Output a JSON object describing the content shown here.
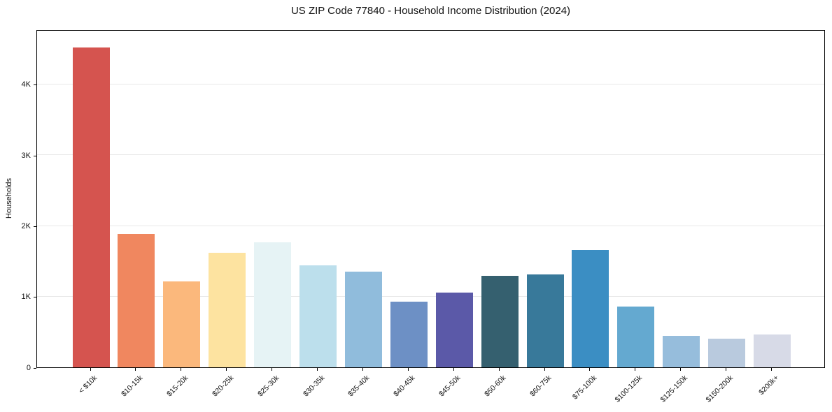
{
  "chart_data": {
    "type": "bar",
    "title": "US ZIP Code 77840 - Household Income Distribution (2024)",
    "xlabel": "",
    "ylabel": "Households",
    "categories": [
      "< $10k",
      "$10-15k",
      "$15-20k",
      "$20-25k",
      "$25-30k",
      "$30-35k",
      "$35-40k",
      "$40-45k",
      "$45-50k",
      "$50-60k",
      "$60-75k",
      "$75-100k",
      "$100-125k",
      "$125-150k",
      "$150-200k",
      "$200k+"
    ],
    "values": [
      4520,
      1890,
      1210,
      1615,
      1770,
      1440,
      1355,
      930,
      1055,
      1295,
      1310,
      1655,
      860,
      445,
      405,
      460
    ],
    "bar_colors": [
      "#d5544f",
      "#f0875f",
      "#fbb87c",
      "#fde3a0",
      "#e6f3f5",
      "#bcdfec",
      "#90bcdc",
      "#6d90c5",
      "#5b59a8",
      "#35606f",
      "#38799a",
      "#3b8ec3",
      "#64a9d0",
      "#96bddc",
      "#b9cade",
      "#d7dae7"
    ],
    "ylim": [
      0,
      4780
    ],
    "yticks": [
      {
        "value": 0,
        "label": "0"
      },
      {
        "value": 1000,
        "label": "1K"
      },
      {
        "value": 2000,
        "label": "2K"
      },
      {
        "value": 3000,
        "label": "3K"
      },
      {
        "value": 4000,
        "label": "4K"
      }
    ],
    "grid": "horizontal-light",
    "legend": "none",
    "colors": {
      "background": "#ffffff",
      "spine": "#000000",
      "gridline": "#e8e8e8",
      "text": "#111111"
    }
  }
}
